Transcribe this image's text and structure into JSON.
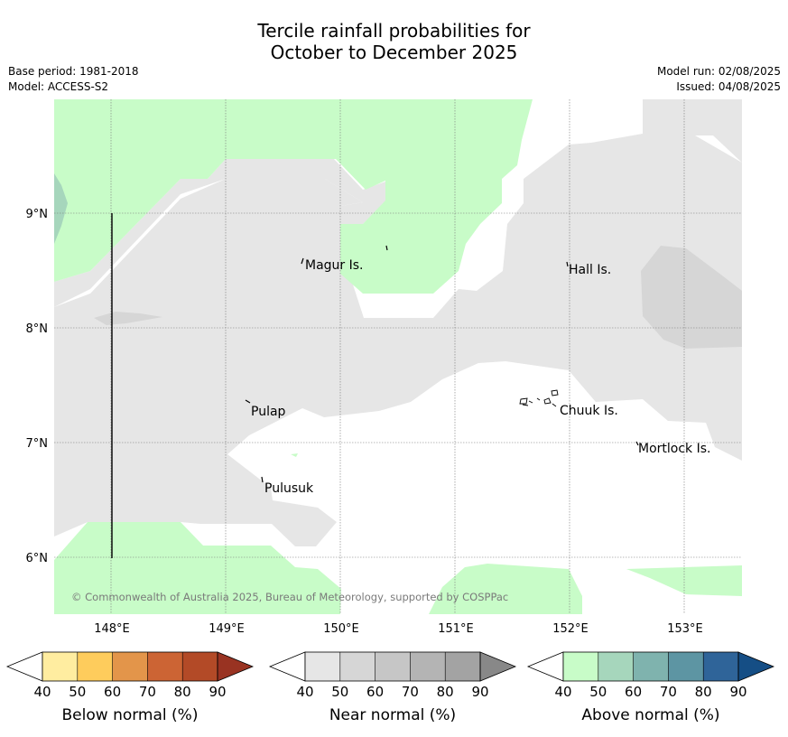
{
  "header": {
    "title_line1": "Tercile rainfall probabilities for",
    "title_line2": "October to December 2025",
    "base_period": "Base period: 1981-2018",
    "model": "Model: ACCESS-S2",
    "model_run": "Model run: 02/08/2025",
    "issued": "Issued: 04/08/2025"
  },
  "map": {
    "lon_labels": [
      "148°E",
      "149°E",
      "150°E",
      "151°E",
      "152°E",
      "153°E"
    ],
    "lat_labels": [
      "9°N",
      "8°N",
      "7°N",
      "6°N"
    ],
    "places": [
      "Magur Is.",
      "Hall Is.",
      "Pulap",
      "Chuuk Is.",
      "Mortlock Is.",
      "Pulusuk"
    ],
    "copyright": "© Commonwealth of Australia 2025, Bureau of Meteorology, supported by COSPPac"
  },
  "legends": [
    {
      "title": "Below normal (%)",
      "ticks": [
        "40",
        "50",
        "60",
        "70",
        "80",
        "90"
      ],
      "colors": [
        "#ffeda0",
        "#fecc5c",
        "#e3954a",
        "#cc6434",
        "#b34a27",
        "#993322"
      ]
    },
    {
      "title": "Near normal (%)",
      "ticks": [
        "40",
        "50",
        "60",
        "70",
        "80",
        "90"
      ],
      "colors": [
        "#e6e6e6",
        "#d6d6d6",
        "#c6c6c6",
        "#b4b4b4",
        "#a3a3a3",
        "#888888"
      ]
    },
    {
      "title": "Above normal (%)",
      "ticks": [
        "40",
        "50",
        "60",
        "70",
        "80",
        "90"
      ],
      "colors": [
        "#c8fcc8",
        "#a6d6bc",
        "#7fb3ae",
        "#5d95a3",
        "#2f6499",
        "#154e85"
      ]
    }
  ]
}
